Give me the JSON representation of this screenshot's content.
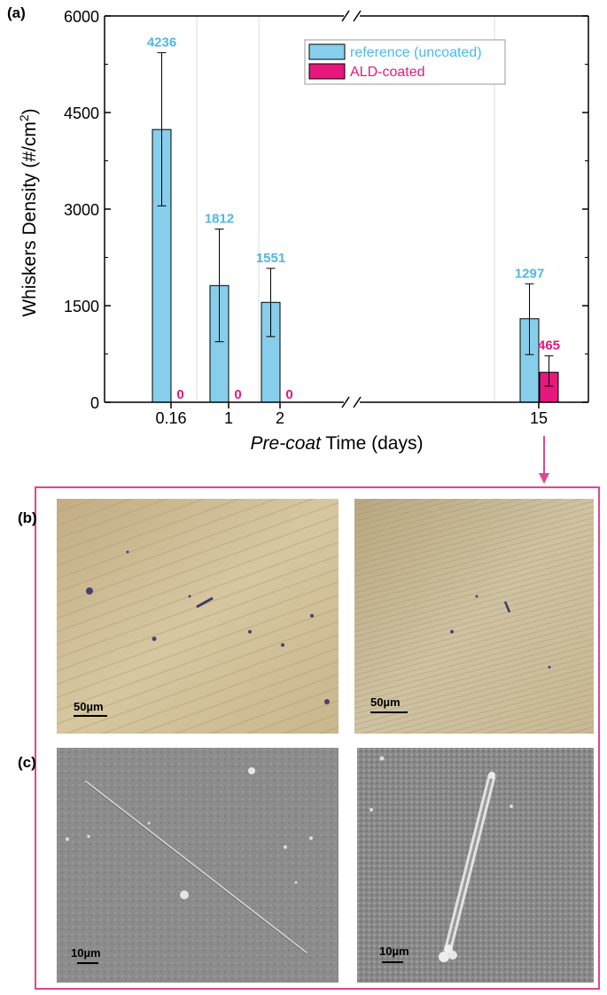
{
  "chart_data": {
    "type": "bar",
    "panel_label": "(a)",
    "xlabel_italic": "Pre-coat",
    "xlabel_rest": " Time (days)",
    "ylabel": "Whiskers Density (#/cm",
    "ylabel_sup": "2",
    "ylabel_close": ")",
    "ylim": [
      0,
      6000
    ],
    "yticks": [
      "0",
      "1500",
      "3000",
      "4500",
      "6000"
    ],
    "categories": [
      "0.16",
      "1",
      "2",
      "15"
    ],
    "axis_break": "//",
    "series": [
      {
        "name": "reference (uncoated)",
        "color": "#87ceeb",
        "label_color": "#4db8e8",
        "values": [
          4236,
          1812,
          1551,
          1297
        ],
        "errors": [
          [
            3050,
            5430
          ],
          [
            940,
            2690
          ],
          [
            1020,
            2080
          ],
          [
            740,
            1840
          ]
        ],
        "labels": [
          "4236",
          "1812",
          "1551",
          "1297"
        ]
      },
      {
        "name": "ALD-coated",
        "color": "#e8177d",
        "label_color": "#e8177d",
        "values": [
          0,
          0,
          0,
          465
        ],
        "errors": [
          null,
          null,
          null,
          [
            250,
            720
          ]
        ],
        "labels": [
          "0",
          "0",
          "0",
          "465"
        ]
      }
    ],
    "legend_position": "top-right",
    "grid": "vertical"
  },
  "panels": {
    "b_label": "(b)",
    "c_label": "(c)",
    "b_left_scale": "50µm",
    "b_right_scale": "50µm",
    "c_left_scale": "10µm",
    "c_right_scale": "10µm"
  }
}
